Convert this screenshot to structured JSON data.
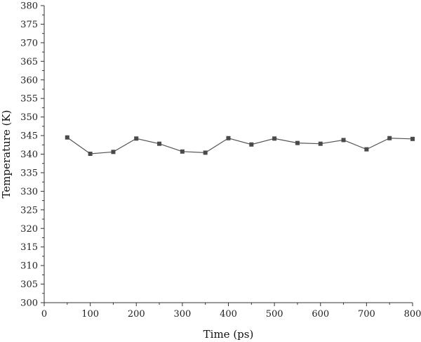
{
  "chart_data": {
    "type": "line",
    "xlabel": "Time (ps)",
    "ylabel": "Temperature (K)",
    "xlim": [
      0,
      800
    ],
    "ylim": [
      300,
      380
    ],
    "x_ticks": [
      0,
      100,
      200,
      300,
      400,
      500,
      600,
      700,
      800
    ],
    "y_ticks": [
      300,
      305,
      310,
      315,
      320,
      325,
      330,
      335,
      340,
      345,
      350,
      355,
      360,
      365,
      370,
      375,
      380
    ],
    "grid": false,
    "marker": "square",
    "series": [
      {
        "x": [
          50,
          100,
          150,
          200,
          250,
          300,
          350,
          400,
          450,
          500,
          550,
          600,
          650,
          700,
          750,
          800
        ],
        "y": [
          344.5,
          340.1,
          340.6,
          344.2,
          342.8,
          340.7,
          340.4,
          344.3,
          342.6,
          344.2,
          343.0,
          342.8,
          343.8,
          341.3,
          344.3,
          344.1
        ]
      }
    ]
  }
}
